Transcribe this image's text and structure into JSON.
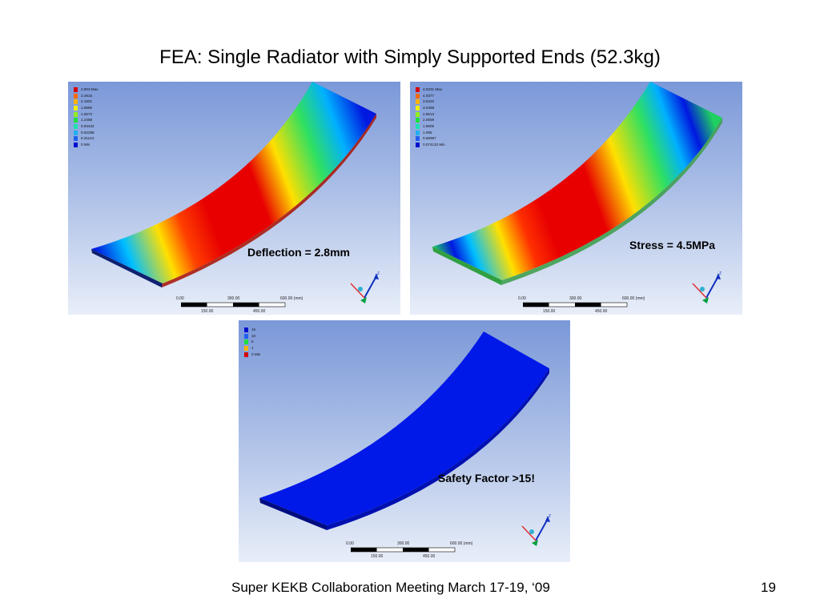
{
  "slide": {
    "title": "FEA: Single Radiator with Simply Supported Ends (52.3kg)",
    "footer": "Super KEKB Collaboration Meeting March 17-19, ‘09",
    "page_number": "19"
  },
  "panels": {
    "deflection": {
      "annotation": "Deflection = 2.8mm",
      "legend": [
        {
          "label": "2.803 Max",
          "color": "#d40000"
        },
        {
          "label": "2.4915",
          "color": "#ff6a00"
        },
        {
          "label": "2.1801",
          "color": "#ffb400"
        },
        {
          "label": "1.8686",
          "color": "#f0f000"
        },
        {
          "label": "1.5572",
          "color": "#90ee20"
        },
        {
          "label": "1.2458",
          "color": "#20e040"
        },
        {
          "label": "0.93432",
          "color": "#20e0b0"
        },
        {
          "label": "0.62288",
          "color": "#20b0f0"
        },
        {
          "label": "0.31144",
          "color": "#2060f0"
        },
        {
          "label": "0 Min",
          "color": "#0010d0"
        }
      ],
      "scale": {
        "tick0": "0.00",
        "tick1": "300.00",
        "tick2": "600.00 (mm)",
        "sub1": "150.00",
        "sub2": "450.00"
      }
    },
    "stress": {
      "annotation": "Stress = 4.5MPa",
      "legend": [
        {
          "label": "4.5331 Max",
          "color": "#d40000"
        },
        {
          "label": "4.0377",
          "color": "#ff6a00"
        },
        {
          "label": "3.5422",
          "color": "#ffb400"
        },
        {
          "label": "3.0468",
          "color": "#f0f000"
        },
        {
          "label": "2.5513",
          "color": "#90ee20"
        },
        {
          "label": "2.0559",
          "color": "#20e040"
        },
        {
          "label": "1.5605",
          "color": "#20e0b0"
        },
        {
          "label": "1.065",
          "color": "#20b0f0"
        },
        {
          "label": "0.56957",
          "color": "#2060f0"
        },
        {
          "label": "0.074132 Min",
          "color": "#0010d0"
        }
      ],
      "scale": {
        "tick0": "0.00",
        "tick1": "300.00",
        "tick2": "600.00 (mm)",
        "sub1": "150.00",
        "sub2": "450.00"
      }
    },
    "safety": {
      "annotation": "Safety Factor >15!",
      "legend": [
        {
          "label": "15",
          "color": "#0010d0"
        },
        {
          "label": "10",
          "color": "#2060f0"
        },
        {
          "label": "5",
          "color": "#20e040"
        },
        {
          "label": "1",
          "color": "#ffb400"
        },
        {
          "label": "0 Min",
          "color": "#d40000"
        }
      ],
      "scale": {
        "tick0": "0.00",
        "tick1": "300.00",
        "tick2": "600.00 (mm)",
        "sub1": "150.00",
        "sub2": "450.00"
      }
    }
  },
  "colors": {
    "contour_red": "#e80000",
    "contour_blue": "#0018e0",
    "axis_z": "#1030c0",
    "axis_y": "#00a040",
    "axis_x": "#e03030"
  }
}
